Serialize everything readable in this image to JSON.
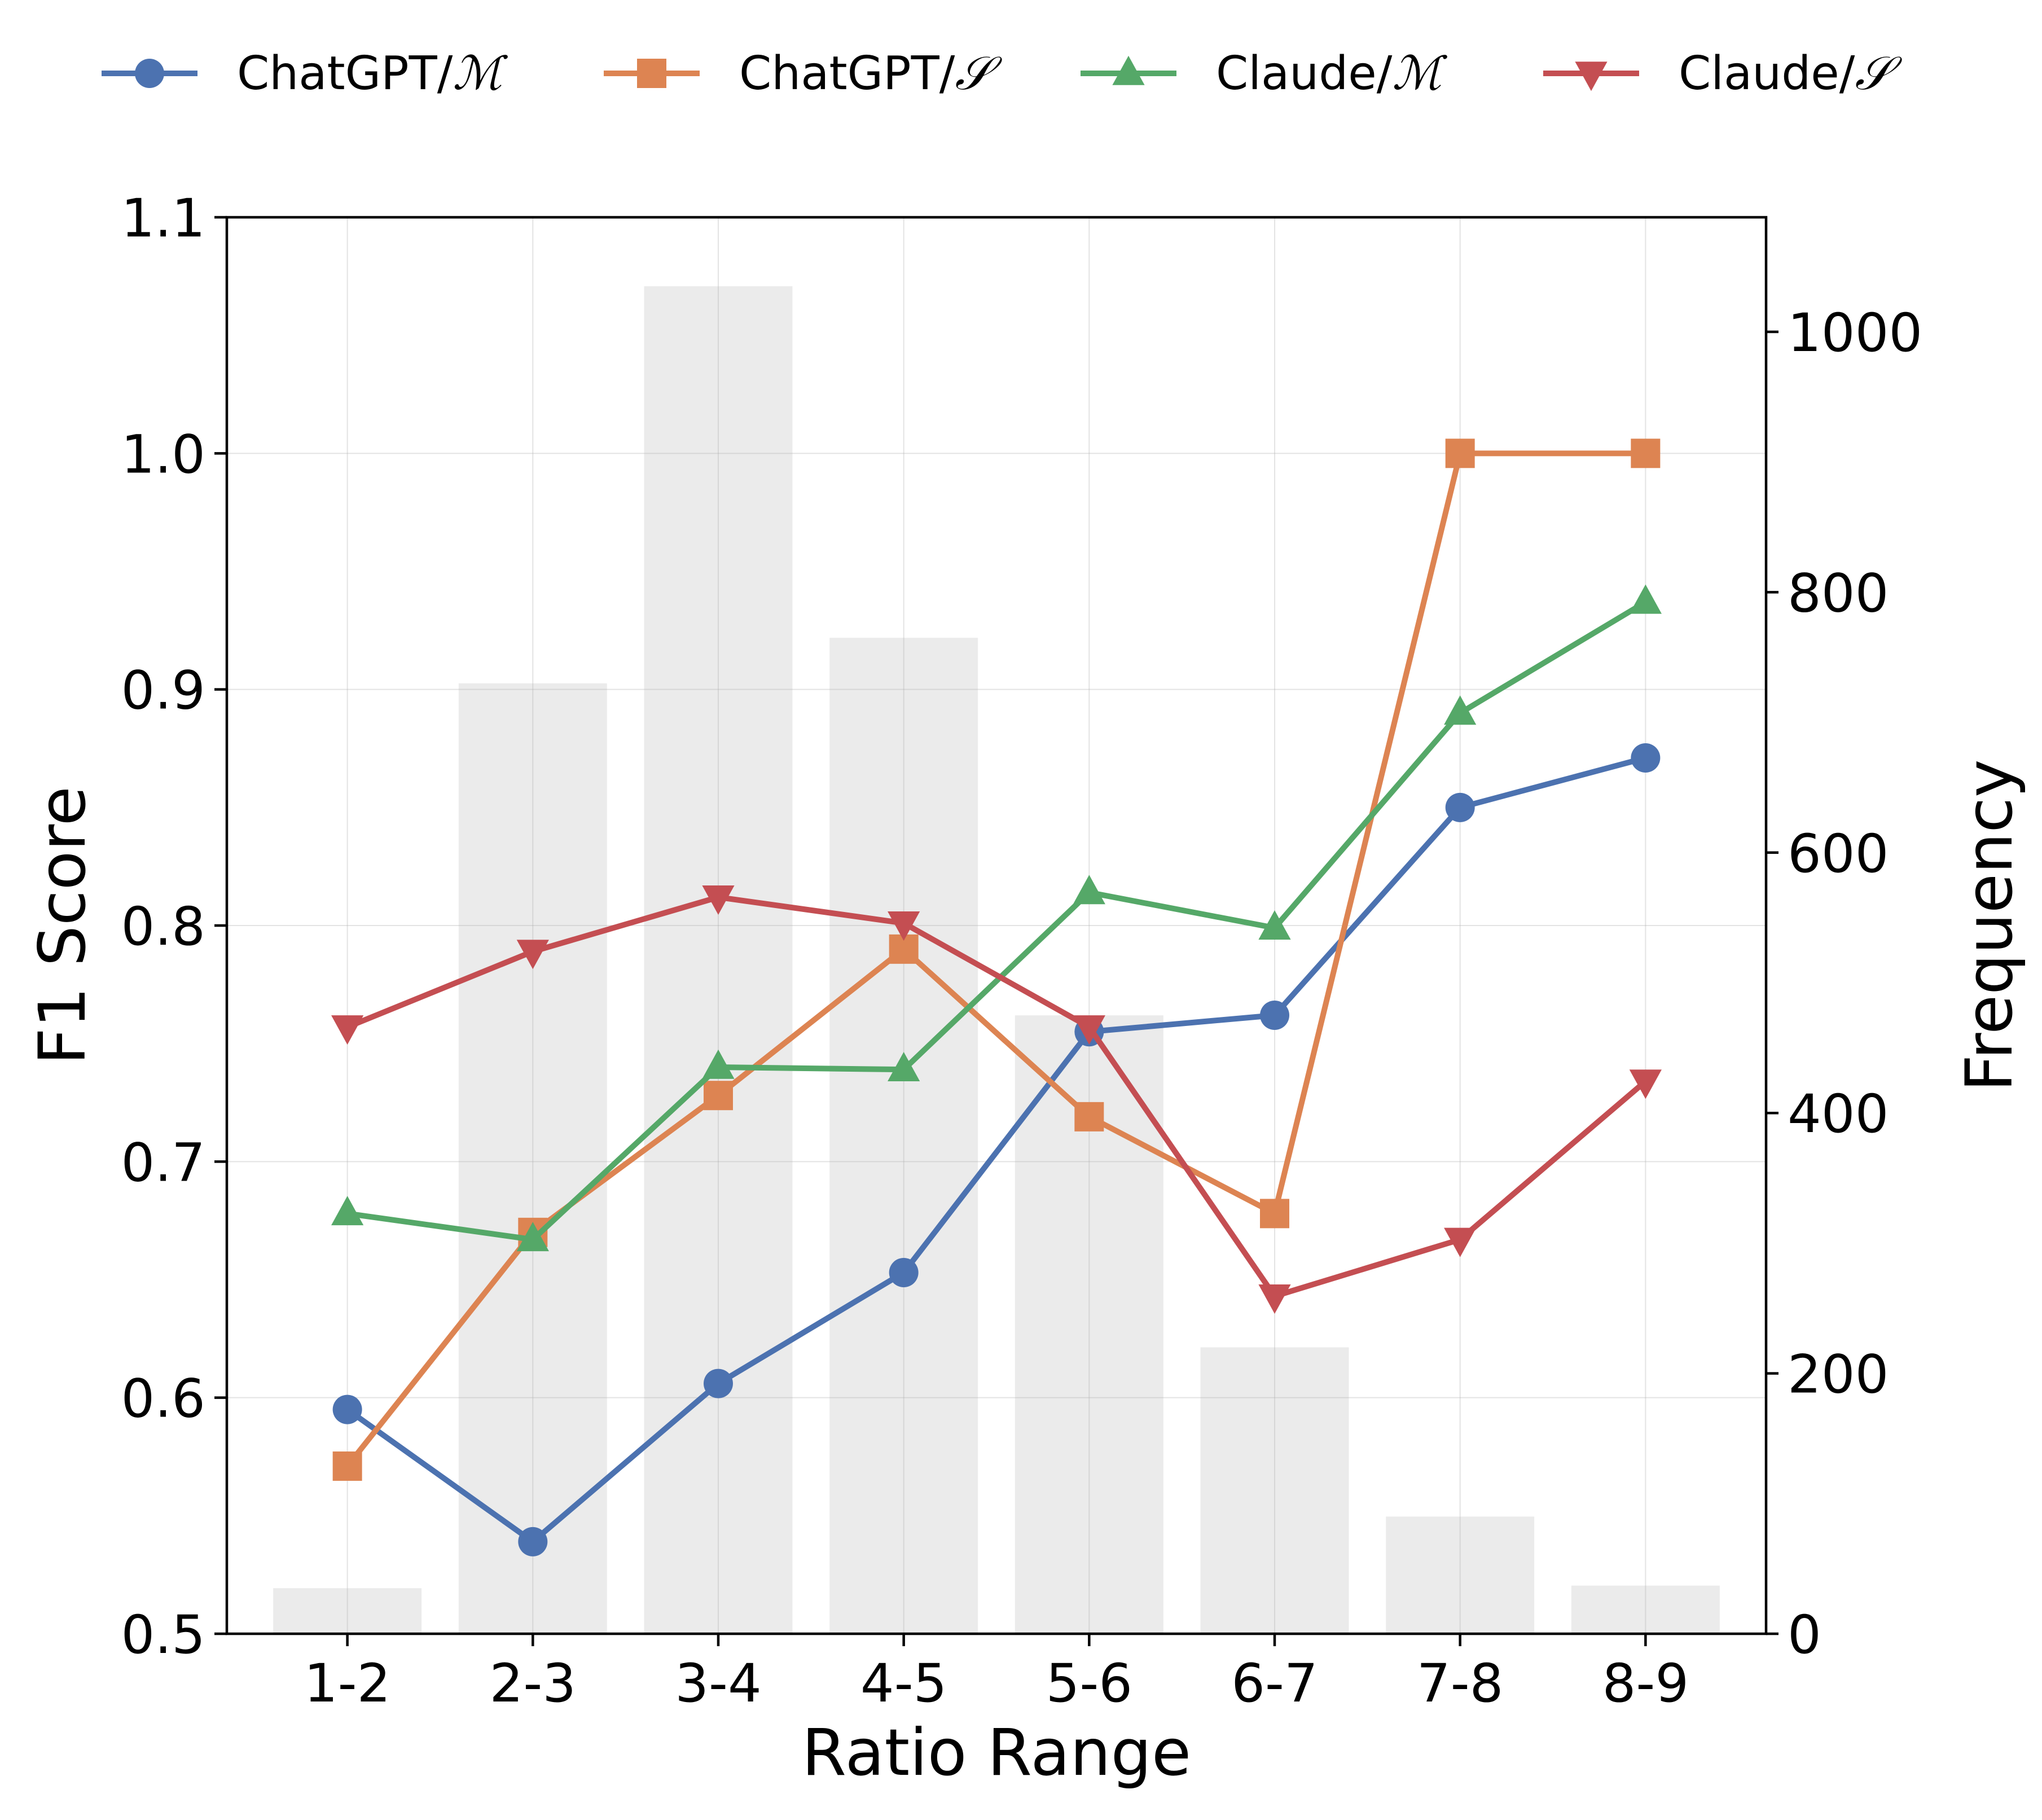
{
  "chart_data": {
    "type": "line",
    "xlabel": "Ratio Range",
    "ylabel": "F1 Score",
    "y2label": "Frequency",
    "categories": [
      "1-2",
      "2-3",
      "3-4",
      "4-5",
      "5-6",
      "6-7",
      "7-8",
      "8-9"
    ],
    "ylim": [
      0.5,
      1.1
    ],
    "yticks": [
      "0.5",
      "0.6",
      "0.7",
      "0.8",
      "0.9",
      "1.0",
      "1.1"
    ],
    "y2lim": [
      0,
      1088
    ],
    "y2ticks": [
      "0",
      "200",
      "400",
      "600",
      "800",
      "1000"
    ],
    "grid": true,
    "legend_position": "top",
    "frequency": {
      "type": "bar",
      "color": "#ebebeb",
      "values": [
        35,
        730,
        1035,
        765,
        475,
        220,
        90,
        37
      ]
    },
    "series": [
      {
        "name": "ChatGPT/",
        "symbol": "ℳ",
        "color": "#4c72b0",
        "marker": "circle",
        "values": [
          0.595,
          0.539,
          0.606,
          0.653,
          0.755,
          0.762,
          0.85,
          0.871
        ]
      },
      {
        "name": "ChatGPT/",
        "symbol": "𝒮",
        "color": "#dd8452",
        "marker": "square",
        "values": [
          0.571,
          0.67,
          0.728,
          0.79,
          0.719,
          0.678,
          1.0,
          1.0
        ]
      },
      {
        "name": "Claude/",
        "symbol": "ℳ",
        "color": "#55a868",
        "marker": "triangle-up",
        "values": [
          0.678,
          0.667,
          0.74,
          0.739,
          0.814,
          0.799,
          0.89,
          0.937
        ]
      },
      {
        "name": "Claude/",
        "symbol": "𝒮",
        "color": "#c44e52",
        "marker": "triangle-down",
        "values": [
          0.757,
          0.789,
          0.812,
          0.801,
          0.757,
          0.643,
          0.667,
          0.734
        ]
      }
    ]
  }
}
